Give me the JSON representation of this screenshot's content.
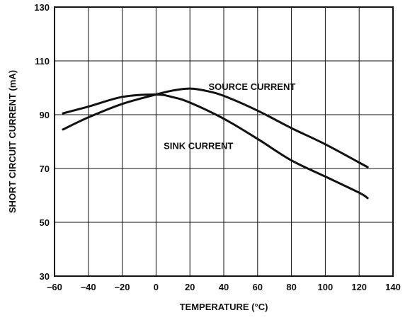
{
  "chart_data": {
    "type": "line",
    "title": "",
    "xlabel": "TEMPERATURE (°C)",
    "ylabel": "SHORT CIRCUIT CURRENT (mA)",
    "xlim": [
      -60,
      140
    ],
    "ylim": [
      30,
      130
    ],
    "xticks": [
      -60,
      -40,
      -20,
      0,
      20,
      40,
      60,
      80,
      100,
      120,
      140
    ],
    "yticks": [
      30,
      50,
      70,
      90,
      110,
      130
    ],
    "xtick_labels": [
      "–60",
      "–40",
      "–20",
      "0",
      "20",
      "40",
      "60",
      "80",
      "100",
      "120",
      "140"
    ],
    "ytick_labels": [
      "30",
      "50",
      "70",
      "90",
      "110",
      "130"
    ],
    "grid": true,
    "legend": "none",
    "series": [
      {
        "name": "SOURCE CURRENT",
        "x": [
          -55,
          -40,
          -20,
          0,
          10,
          20,
          30,
          40,
          60,
          80,
          100,
          125
        ],
        "y": [
          84.5,
          89,
          94,
          97.5,
          99,
          99.7,
          98.8,
          97,
          91.5,
          85,
          79,
          70.5
        ]
      },
      {
        "name": "SINK CURRENT",
        "x": [
          -55,
          -40,
          -20,
          0,
          10,
          20,
          40,
          60,
          80,
          100,
          120,
          125
        ],
        "y": [
          90.5,
          93,
          96.6,
          97.5,
          96.5,
          94.5,
          88.5,
          81,
          73,
          67,
          61,
          59
        ]
      }
    ],
    "annotations": [
      "SOURCE CURRENT",
      "SINK CURRENT"
    ]
  }
}
